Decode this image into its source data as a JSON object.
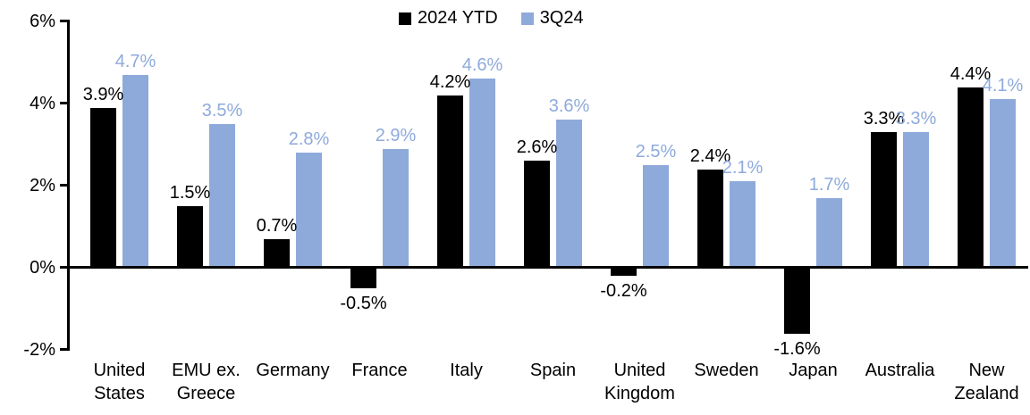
{
  "chart_data": {
    "type": "bar",
    "title": "",
    "xlabel": "",
    "ylabel": "",
    "categories": [
      "United States",
      "EMU ex. Greece",
      "Germany",
      "France",
      "Italy",
      "Spain",
      "United Kingdom",
      "Sweden",
      "Japan",
      "Australia",
      "New Zealand"
    ],
    "series": [
      {
        "name": "2024 YTD",
        "color": "#000000",
        "values": [
          3.9,
          1.5,
          0.7,
          -0.5,
          4.2,
          2.6,
          -0.2,
          2.4,
          -1.6,
          3.3,
          4.4
        ],
        "labels": [
          "3.9%",
          "1.5%",
          "0.7%",
          "-0.5%",
          "4.2%",
          "2.6%",
          "-0.2%",
          "2.4%",
          "-1.6%",
          "3.3%",
          "4.4%"
        ]
      },
      {
        "name": "3Q24",
        "color": "#8EAADB",
        "values": [
          4.7,
          3.5,
          2.8,
          2.9,
          4.6,
          3.6,
          2.5,
          2.1,
          1.7,
          3.3,
          4.1
        ],
        "labels": [
          "4.7%",
          "3.5%",
          "2.8%",
          "2.9%",
          "4.6%",
          "3.6%",
          "2.5%",
          "2.1%",
          "1.7%",
          "3.3%",
          "4.1%"
        ]
      }
    ],
    "ylim": [
      -2,
      6
    ],
    "yticks": [
      {
        "value": 6,
        "label": "6%"
      },
      {
        "value": 4,
        "label": "4%"
      },
      {
        "value": 2,
        "label": "2%"
      },
      {
        "value": 0,
        "label": "0%"
      },
      {
        "value": -2,
        "label": "-2%"
      }
    ],
    "grid": false,
    "legend_position": "top-center",
    "axis_color": "#000000",
    "background_color": "#FFFFFF",
    "value_labels_shown": true
  }
}
